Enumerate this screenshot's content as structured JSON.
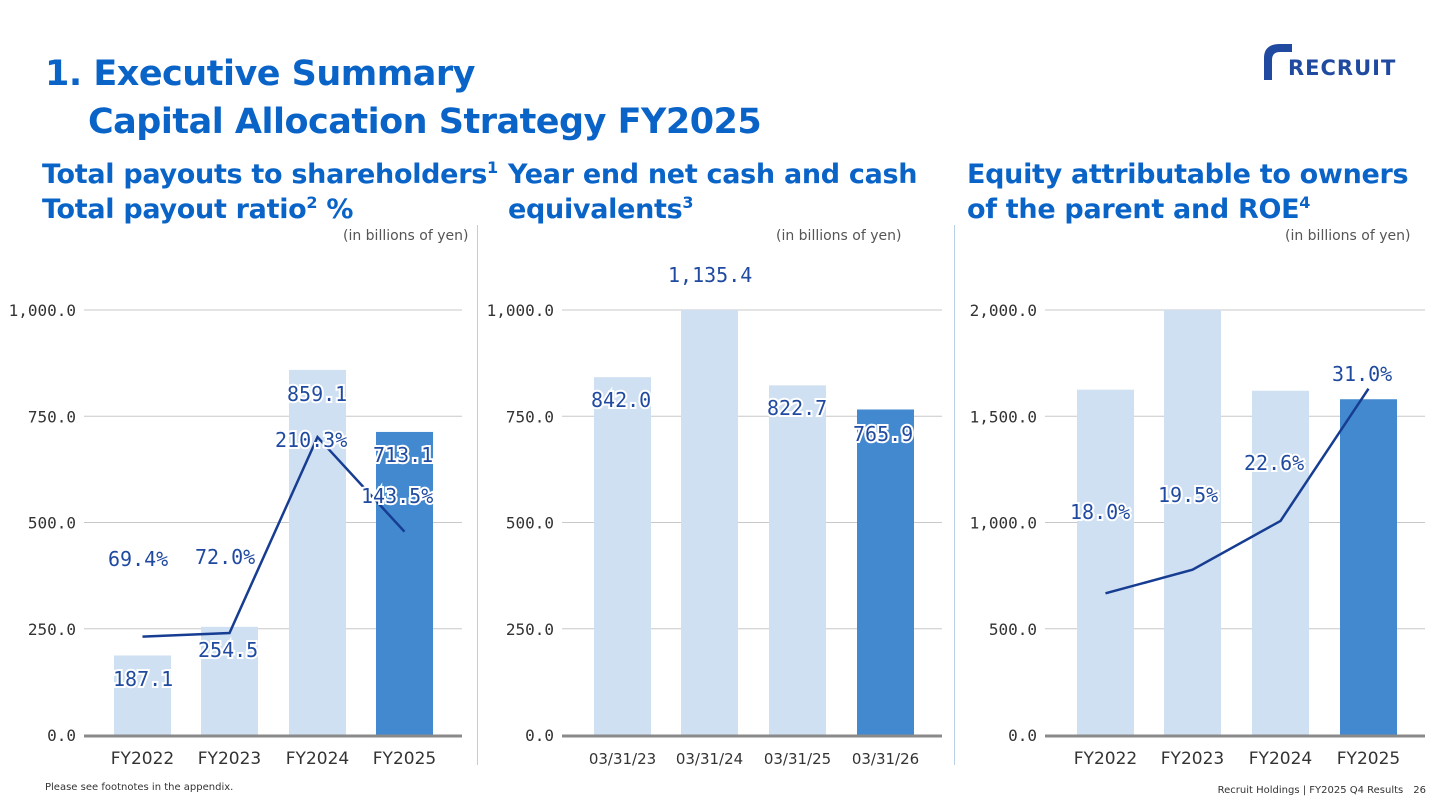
{
  "header": {
    "title_line1": "1. Executive Summary",
    "title_line2": "Capital Allocation Strategy FY2025",
    "logo_text": "RECRUIT"
  },
  "colors": {
    "bar_light": "#cfe0f2",
    "bar_dark": "#4289d0",
    "line": "#173d92",
    "grid": "#c8c8c8",
    "axis": "#8a8a8a",
    "title_blue": "#0a64c8"
  },
  "panels": [
    {
      "title_line1": "Total payouts to shareholders",
      "sup1": "1",
      "title_line2": "Total payout ratio",
      "sup2": "2",
      "title_tail": " %",
      "unit": "(in billions of yen)"
    },
    {
      "title_line1": "Year end net cash and cash",
      "title_line2": "equivalents",
      "sup2": "3",
      "unit": "(in billions of yen)"
    },
    {
      "title_line1": "Equity attributable to owners",
      "title_line2": "of the parent and ROE",
      "sup2": "4",
      "unit": "(in billions of yen)"
    }
  ],
  "chart_data": [
    {
      "type": "bar",
      "categories": [
        "FY2022",
        "FY2023",
        "FY2024",
        "FY2025"
      ],
      "values": [
        187.1,
        254.5,
        859.1,
        713.1
      ],
      "value_labels": [
        "187.1",
        "254.5",
        "859.1",
        "713.1"
      ],
      "highlight_index": 3,
      "ylim": [
        0,
        1000
      ],
      "yticks": [
        "0.0",
        "250.0",
        "500.0",
        "750.0",
        "1,000.0"
      ],
      "line_series": {
        "values": [
          69.4,
          72.0,
          210.3,
          143.5
        ],
        "labels": [
          "69.4%",
          "72.0%",
          "210.3%",
          "143.5%"
        ],
        "ylim": [
          0,
          300
        ]
      },
      "grid": true
    },
    {
      "type": "bar",
      "categories": [
        "03/31/23",
        "03/31/24",
        "03/31/25",
        "03/31/26"
      ],
      "values": [
        842.0,
        1135.4,
        822.7,
        765.9
      ],
      "value_labels": [
        "842.0",
        "1,135.4",
        "822.7",
        "765.9"
      ],
      "highlight_index": 3,
      "ylim": [
        0,
        1000
      ],
      "yticks": [
        "0.0",
        "250.0",
        "500.0",
        "750.0",
        "1,000.0"
      ],
      "grid": true
    },
    {
      "type": "bar",
      "categories": [
        "FY2022",
        "FY2023",
        "FY2024",
        "FY2025"
      ],
      "values": [
        1625,
        2000,
        1620,
        1580
      ],
      "highlight_index": 3,
      "ylim": [
        0,
        2000
      ],
      "yticks": [
        "0.0",
        "500.0",
        "1,000.0",
        "1,500.0",
        "2,000.0"
      ],
      "line_series": {
        "values": [
          18.0,
          19.5,
          22.6,
          31.0
        ],
        "labels": [
          "18.0%",
          "19.5%",
          "22.6%",
          "31.0%"
        ],
        "ylim": [
          9,
          36
        ]
      },
      "grid": true
    }
  ],
  "footer": {
    "note": "Please see footnotes in the appendix.",
    "source": "Recruit Holdings | FY2025 Q4 Results",
    "page": "26"
  }
}
